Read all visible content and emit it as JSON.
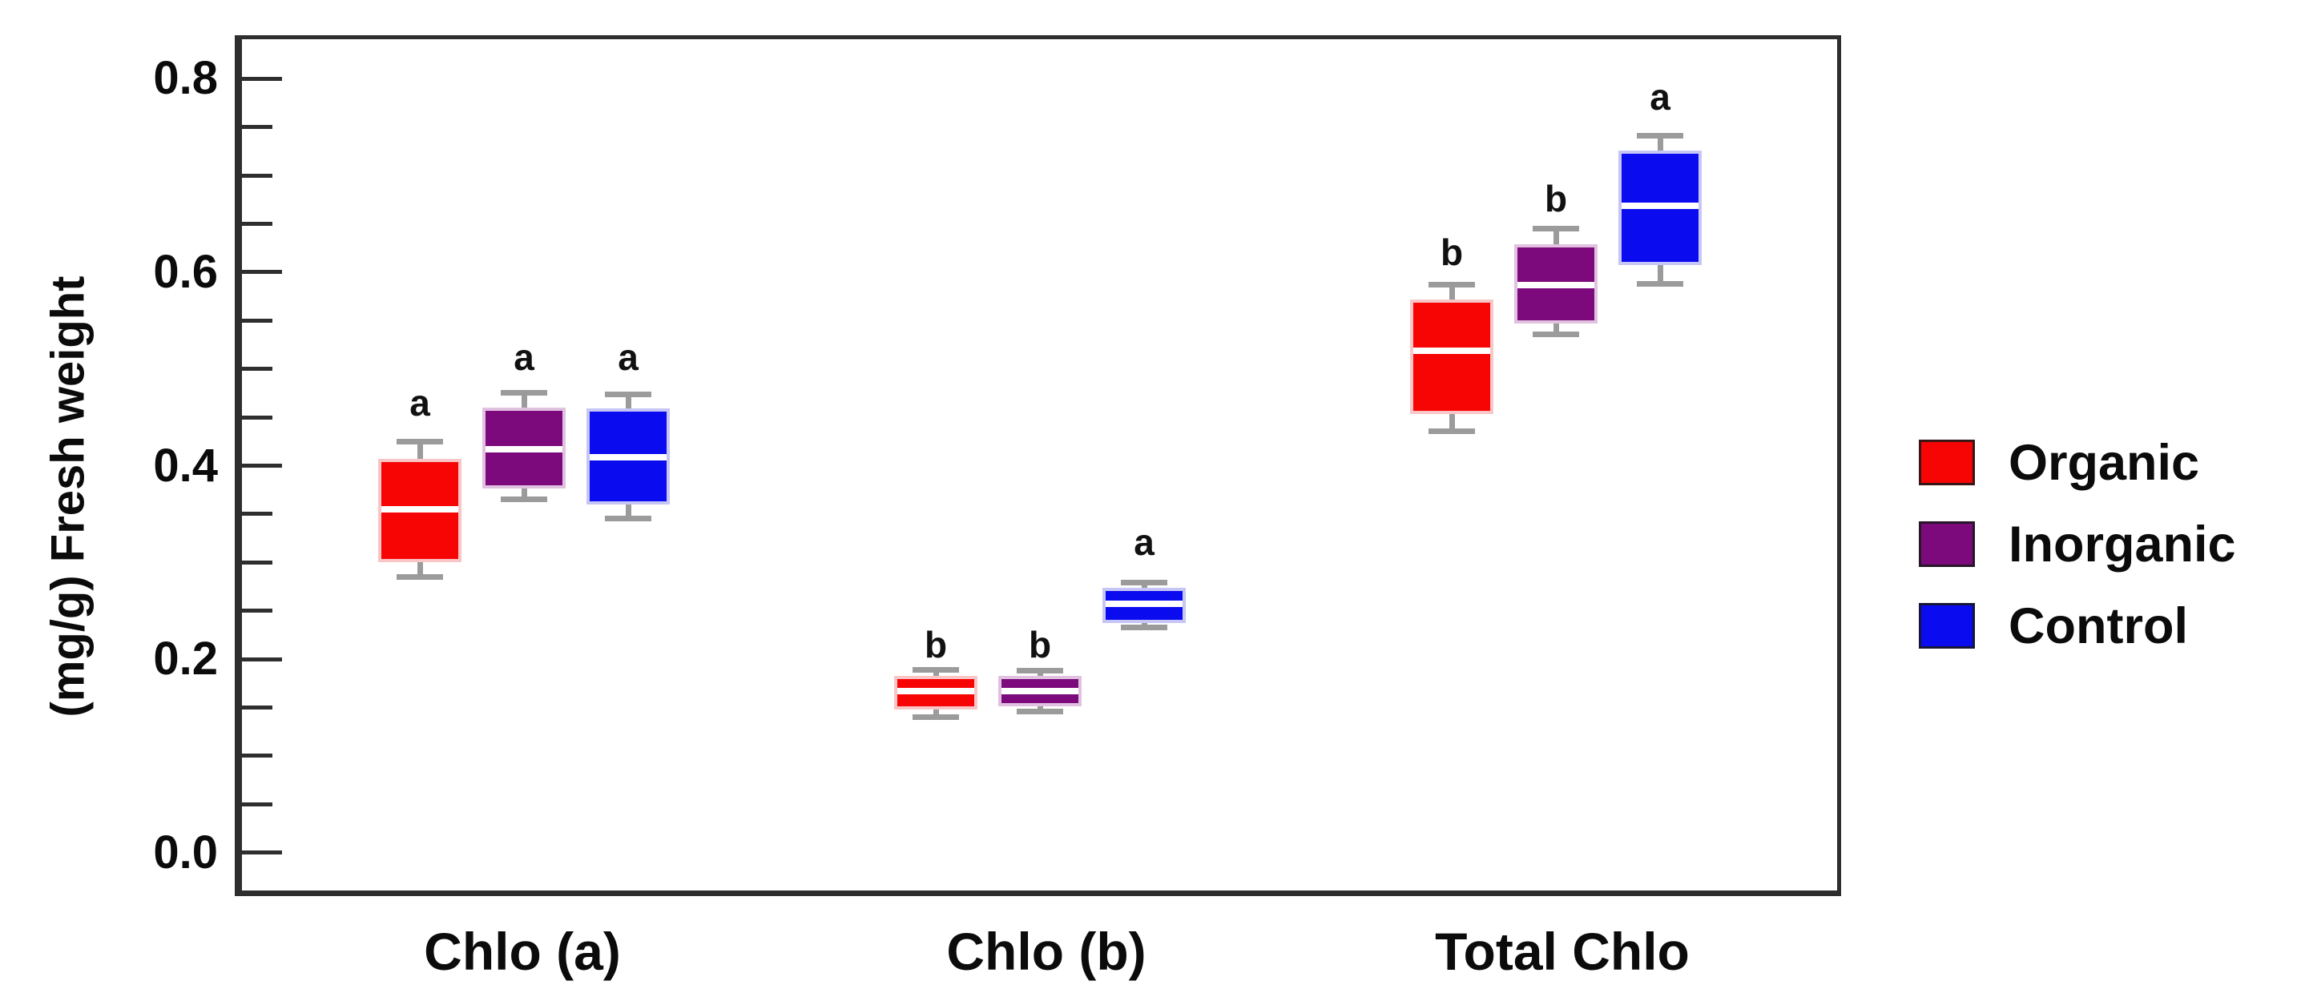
{
  "figure": {
    "background": "#ffffff",
    "axis_color": "#2e2e2e",
    "whisker_color": "#9b9b9b",
    "median_color": "#ffffff",
    "text_color": "#0b0b0b"
  },
  "chart_data": {
    "type": "boxplot",
    "title": "",
    "ylabel": "(mg/g) Fresh weight",
    "xlabel": "",
    "ylim": [
      -0.045,
      0.845
    ],
    "grid": false,
    "legend_position": "right-outside",
    "y_major_ticks": [
      0.0,
      0.2,
      0.4,
      0.6,
      0.8
    ],
    "y_major_tick_labels": [
      "0.0",
      "0.2",
      "0.4",
      "0.6",
      "0.8"
    ],
    "y_minor_tick_step": 0.05,
    "categories": [
      "Chlo (a)",
      "Chlo (b)",
      "Total Chlo"
    ],
    "series": [
      {
        "name": "Organic",
        "color": "#f70404",
        "pale_border": "#f8c6c6",
        "boxes": [
          {
            "category": "Chlo (a)",
            "whisker_low": 0.285,
            "q1": 0.3,
            "median": 0.355,
            "q3": 0.407,
            "whisker_high": 0.425,
            "sig_letter": "a",
            "letter_y": 0.446
          },
          {
            "category": "Chlo (b)",
            "whisker_low": 0.14,
            "q1": 0.148,
            "median": 0.167,
            "q3": 0.183,
            "whisker_high": 0.189,
            "sig_letter": "b",
            "letter_y": 0.196
          },
          {
            "category": "Total Chlo",
            "whisker_low": 0.436,
            "q1": 0.453,
            "median": 0.519,
            "q3": 0.572,
            "whisker_high": 0.587,
            "sig_letter": "b",
            "letter_y": 0.602
          }
        ]
      },
      {
        "name": "Inorganic",
        "color": "#7c0a7c",
        "pale_border": "#e0c2e0",
        "boxes": [
          {
            "category": "Chlo (a)",
            "whisker_low": 0.365,
            "q1": 0.376,
            "median": 0.417,
            "q3": 0.46,
            "whisker_high": 0.475,
            "sig_letter": "a",
            "letter_y": 0.493
          },
          {
            "category": "Chlo (b)",
            "whisker_low": 0.146,
            "q1": 0.151,
            "median": 0.167,
            "q3": 0.183,
            "whisker_high": 0.188,
            "sig_letter": "b",
            "letter_y": 0.196
          },
          {
            "category": "Total Chlo",
            "whisker_low": 0.536,
            "q1": 0.547,
            "median": 0.587,
            "q3": 0.629,
            "whisker_high": 0.645,
            "sig_letter": "b",
            "letter_y": 0.657
          }
        ]
      },
      {
        "name": "Control",
        "color": "#0b0bf0",
        "pale_border": "#c6c6f6",
        "boxes": [
          {
            "category": "Chlo (a)",
            "whisker_low": 0.345,
            "q1": 0.36,
            "median": 0.409,
            "q3": 0.459,
            "whisker_high": 0.474,
            "sig_letter": "a",
            "letter_y": 0.493
          },
          {
            "category": "Chlo (b)",
            "whisker_low": 0.233,
            "q1": 0.237,
            "median": 0.257,
            "q3": 0.274,
            "whisker_high": 0.279,
            "sig_letter": "a",
            "letter_y": 0.302
          },
          {
            "category": "Total Chlo",
            "whisker_low": 0.588,
            "q1": 0.607,
            "median": 0.669,
            "q3": 0.726,
            "whisker_high": 0.741,
            "sig_letter": "a",
            "letter_y": 0.762
          }
        ]
      }
    ]
  }
}
